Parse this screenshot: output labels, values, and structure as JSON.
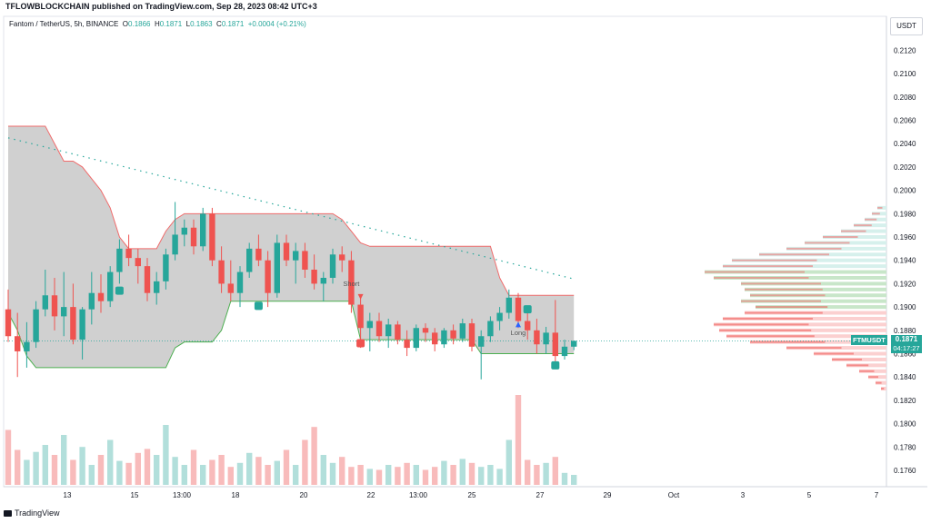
{
  "header": {
    "publisher_line": "TFLOWBLOCKCHAIN published on TradingView.com, Sep 28, 2023 08:42 UTC+3"
  },
  "symbol": {
    "name": "Fantom / TetherUS, 5h, BINANCE",
    "open_label": "O",
    "open": "0.1866",
    "high_label": "H",
    "high": "0.1871",
    "low_label": "L",
    "low": "0.1863",
    "close_label": "C",
    "close": "0.1871",
    "change": "+0.0004 (+0.21%)"
  },
  "currency": "USDT",
  "last_price": {
    "ticker": "FTMUSDT",
    "value": "0.1871",
    "countdown": "04:17:27"
  },
  "footer": {
    "brand": "TradingView"
  },
  "colors": {
    "up": "#26a69a",
    "down": "#ef5350",
    "channel_fill": "#c8c8c8",
    "channel_upper": "#f06b6b",
    "channel_lower": "#4caf50",
    "trend": "#26a69a",
    "vol_up": "#b2dfdb",
    "vol_down": "#f8bbbb"
  },
  "chart_data": {
    "type": "candlestick",
    "timeframe": "5h",
    "y_axis": {
      "ticks": [
        "0.2120",
        "0.2100",
        "0.2080",
        "0.2060",
        "0.2040",
        "0.2020",
        "0.2000",
        "0.1980",
        "0.1960",
        "0.1940",
        "0.1920",
        "0.1900",
        "0.1880",
        "0.1860",
        "0.1840",
        "0.1820",
        "0.1800",
        "0.1780",
        "0.1760"
      ],
      "range": [
        0.1746,
        0.2132
      ]
    },
    "x_axis": {
      "ticks": [
        "13",
        "15",
        "13:00",
        "18",
        "20",
        "22",
        "13:00",
        "25",
        "27",
        "29",
        "Oct",
        "3",
        "5",
        "7"
      ]
    },
    "candles": [
      [
        0.1898,
        0.1915,
        0.187,
        0.1875
      ],
      [
        0.1875,
        0.1895,
        0.184,
        0.1862
      ],
      [
        0.1862,
        0.1887,
        0.1848,
        0.187
      ],
      [
        0.187,
        0.1905,
        0.1865,
        0.1898
      ],
      [
        0.1898,
        0.1932,
        0.1892,
        0.191
      ],
      [
        0.191,
        0.1925,
        0.188,
        0.1892
      ],
      [
        0.1892,
        0.193,
        0.1875,
        0.19
      ],
      [
        0.19,
        0.192,
        0.1868,
        0.1872
      ],
      [
        0.1872,
        0.19,
        0.1855,
        0.1898
      ],
      [
        0.1898,
        0.193,
        0.1885,
        0.1912
      ],
      [
        0.1912,
        0.1928,
        0.1895,
        0.1905
      ],
      [
        0.1905,
        0.1935,
        0.19,
        0.193
      ],
      [
        0.193,
        0.1958,
        0.192,
        0.195
      ],
      [
        0.195,
        0.1962,
        0.1935,
        0.1942
      ],
      [
        0.1942,
        0.195,
        0.192,
        0.1935
      ],
      [
        0.1935,
        0.1942,
        0.1905,
        0.1912
      ],
      [
        0.1912,
        0.193,
        0.1902,
        0.1922
      ],
      [
        0.1922,
        0.195,
        0.1915,
        0.1945
      ],
      [
        0.1945,
        0.199,
        0.194,
        0.1962
      ],
      [
        0.1962,
        0.1975,
        0.1952,
        0.1968
      ],
      [
        0.1968,
        0.1975,
        0.1945,
        0.1952
      ],
      [
        0.1952,
        0.1985,
        0.1948,
        0.198
      ],
      [
        0.198,
        0.1985,
        0.1935,
        0.194
      ],
      [
        0.194,
        0.1952,
        0.1912,
        0.192
      ],
      [
        0.192,
        0.194,
        0.1905,
        0.1912
      ],
      [
        0.1912,
        0.1935,
        0.19,
        0.193
      ],
      [
        0.193,
        0.1955,
        0.1925,
        0.195
      ],
      [
        0.195,
        0.1962,
        0.1935,
        0.194
      ],
      [
        0.194,
        0.1948,
        0.19,
        0.1912
      ],
      [
        0.1912,
        0.1962,
        0.1908,
        0.1955
      ],
      [
        0.1955,
        0.1962,
        0.1935,
        0.194
      ],
      [
        0.194,
        0.1955,
        0.192,
        0.1948
      ],
      [
        0.1948,
        0.1955,
        0.1925,
        0.1932
      ],
      [
        0.1932,
        0.1945,
        0.1915,
        0.192
      ],
      [
        0.192,
        0.193,
        0.1905,
        0.1925
      ],
      [
        0.1925,
        0.195,
        0.192,
        0.1945
      ],
      [
        0.1945,
        0.1952,
        0.193,
        0.194
      ],
      [
        0.194,
        0.1948,
        0.1895,
        0.1902
      ],
      [
        0.1902,
        0.191,
        0.1865,
        0.1882
      ],
      [
        0.1882,
        0.1895,
        0.1862,
        0.1888
      ],
      [
        0.1888,
        0.1895,
        0.187,
        0.1875
      ],
      [
        0.1875,
        0.189,
        0.1865,
        0.1885
      ],
      [
        0.1885,
        0.1888,
        0.1868,
        0.1872
      ],
      [
        0.1872,
        0.188,
        0.1858,
        0.1865
      ],
      [
        0.1865,
        0.1885,
        0.1862,
        0.1882
      ],
      [
        0.1882,
        0.1886,
        0.187,
        0.1878
      ],
      [
        0.1878,
        0.1882,
        0.1862,
        0.1868
      ],
      [
        0.1868,
        0.1882,
        0.1865,
        0.188
      ],
      [
        0.188,
        0.1885,
        0.1868,
        0.1873
      ],
      [
        0.1873,
        0.189,
        0.187,
        0.1886
      ],
      [
        0.1886,
        0.189,
        0.1862,
        0.1866
      ],
      [
        0.1866,
        0.188,
        0.1838,
        0.1875
      ],
      [
        0.1875,
        0.1892,
        0.187,
        0.1888
      ],
      [
        0.1888,
        0.19,
        0.188,
        0.1895
      ],
      [
        0.1895,
        0.1915,
        0.189,
        0.1908
      ],
      [
        0.1908,
        0.1912,
        0.1882,
        0.1888
      ],
      [
        0.1888,
        0.1898,
        0.1872,
        0.188
      ],
      [
        0.188,
        0.189,
        0.186,
        0.1868
      ],
      [
        0.1868,
        0.1883,
        0.186,
        0.1878
      ],
      [
        0.1878,
        0.1906,
        0.185,
        0.1858
      ],
      [
        0.1858,
        0.1872,
        0.1855,
        0.1866
      ],
      [
        0.1866,
        0.1871,
        0.1863,
        0.1871
      ]
    ],
    "volumes": [
      0.55,
      0.35,
      0.25,
      0.33,
      0.4,
      0.3,
      0.5,
      0.25,
      0.38,
      0.2,
      0.3,
      0.45,
      0.24,
      0.22,
      0.32,
      0.36,
      0.3,
      0.6,
      0.28,
      0.2,
      0.35,
      0.2,
      0.25,
      0.3,
      0.18,
      0.22,
      0.32,
      0.28,
      0.2,
      0.24,
      0.35,
      0.2,
      0.45,
      0.58,
      0.3,
      0.22,
      0.28,
      0.18,
      0.2,
      0.16,
      0.15,
      0.2,
      0.18,
      0.22,
      0.2,
      0.15,
      0.18,
      0.24,
      0.2,
      0.26,
      0.22,
      0.18,
      0.2,
      0.16,
      0.45,
      0.9,
      0.25,
      0.2,
      0.22,
      0.28,
      0.12,
      0.1
    ],
    "channel": {
      "upper": [
        0.2055,
        0.2055,
        0.2055,
        0.2055,
        0.2055,
        0.204,
        0.2025,
        0.2025,
        0.202,
        0.201,
        0.2,
        0.1985,
        0.196,
        0.195,
        0.195,
        0.195,
        0.195,
        0.1965,
        0.1975,
        0.198,
        0.198,
        0.198,
        0.198,
        0.198,
        0.198,
        0.198,
        0.198,
        0.198,
        0.198,
        0.198,
        0.198,
        0.198,
        0.198,
        0.198,
        0.198,
        0.198,
        0.1975,
        0.1965,
        0.1955,
        0.1952,
        0.1952,
        0.1952,
        0.1952,
        0.1952,
        0.1952,
        0.1952,
        0.1952,
        0.1952,
        0.1952,
        0.1952,
        0.1952,
        0.1952,
        0.1952,
        0.1925,
        0.191,
        0.191,
        0.191,
        0.191,
        0.191,
        0.191,
        0.191,
        0.191
      ],
      "lower": [
        0.1895,
        0.188,
        0.1858,
        0.1848,
        0.1848,
        0.1848,
        0.1848,
        0.1848,
        0.1848,
        0.1848,
        0.1848,
        0.1848,
        0.1848,
        0.1848,
        0.1848,
        0.1848,
        0.1848,
        0.1848,
        0.1865,
        0.187,
        0.187,
        0.187,
        0.187,
        0.188,
        0.1905,
        0.1905,
        0.1905,
        0.1905,
        0.1905,
        0.1905,
        0.1905,
        0.1905,
        0.1905,
        0.1905,
        0.1905,
        0.1905,
        0.1905,
        0.1905,
        0.1872,
        0.1872,
        0.1872,
        0.1872,
        0.1872,
        0.1872,
        0.1872,
        0.1872,
        0.1872,
        0.1872,
        0.1872,
        0.1872,
        0.1872,
        0.186,
        0.186,
        0.186,
        0.186,
        0.186,
        0.186,
        0.186,
        0.186,
        0.186,
        0.186,
        0.186
      ]
    },
    "trend_line": {
      "from": [
        0,
        0.2045
      ],
      "to": [
        61,
        0.1924
      ]
    },
    "signals": [
      {
        "label": "Short",
        "index": 37,
        "price": 0.1918
      },
      {
        "label": "Long",
        "index": 55,
        "price": 0.1876
      }
    ],
    "volume_profile": {
      "levels": [
        0.1985,
        0.198,
        0.1975,
        0.197,
        0.1965,
        0.196,
        0.1955,
        0.195,
        0.1945,
        0.194,
        0.1935,
        0.193,
        0.1925,
        0.192,
        0.1915,
        0.191,
        0.1905,
        0.19,
        0.1895,
        0.189,
        0.1885,
        0.188,
        0.1875,
        0.187,
        0.1865,
        0.186,
        0.1855,
        0.185,
        0.1845,
        0.184,
        0.1835,
        0.183
      ],
      "values": [
        0.05,
        0.08,
        0.12,
        0.18,
        0.25,
        0.35,
        0.45,
        0.55,
        0.7,
        0.85,
        0.9,
        1.0,
        0.95,
        0.8,
        0.78,
        0.75,
        0.8,
        0.72,
        0.78,
        0.9,
        0.95,
        0.92,
        0.88,
        0.75,
        0.55,
        0.4,
        0.3,
        0.22,
        0.15,
        0.1,
        0.06,
        0.03
      ]
    }
  }
}
